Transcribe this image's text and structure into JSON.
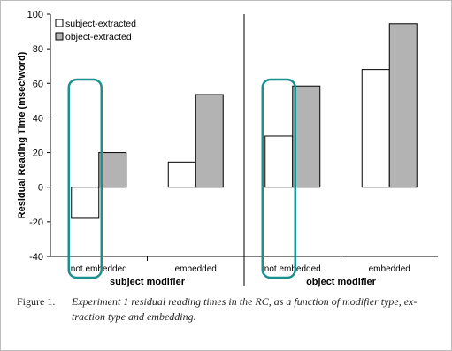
{
  "chart_data": {
    "type": "bar",
    "ylabel": "Residual Reading Time (msec/word)",
    "ylim": [
      -40,
      100
    ],
    "yticks": [
      -40,
      -20,
      0,
      20,
      40,
      60,
      80,
      100
    ],
    "grid": false,
    "legend_position": "top-left",
    "groups": [
      {
        "label": "subject modifier",
        "categories": [
          "not embedded",
          "embedded"
        ]
      },
      {
        "label": "object modifier",
        "categories": [
          "not embedded",
          "embedded"
        ]
      }
    ],
    "categories": [
      "not embedded",
      "embedded",
      "not embedded",
      "embedded"
    ],
    "series": [
      {
        "name": "subject-extracted",
        "values": [
          -18,
          14.5,
          29.5,
          68
        ],
        "color": "#ffffff"
      },
      {
        "name": "object-extracted",
        "values": [
          20,
          53.5,
          58.5,
          94.5
        ],
        "color": "#b3b3b3"
      }
    ],
    "highlight_color": "#1a9090"
  },
  "caption": {
    "label": "Figure 1.",
    "line1": "Experiment 1 residual reading times in the RC, as a function of modifier type, ex-",
    "line2": "traction type and embedding."
  }
}
